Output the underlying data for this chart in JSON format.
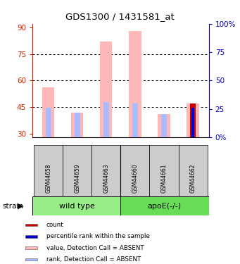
{
  "title": "GDS1300 / 1431581_at",
  "samples": [
    "GSM44658",
    "GSM44659",
    "GSM44663",
    "GSM44660",
    "GSM44661",
    "GSM44662"
  ],
  "ylim_left": [
    28,
    92
  ],
  "ylim_right": [
    0,
    100
  ],
  "yticks_left": [
    30,
    45,
    60,
    75,
    90
  ],
  "yticks_right": [
    0,
    25,
    50,
    75,
    100
  ],
  "yticklabels_left": [
    "30",
    "45",
    "60",
    "75",
    "90"
  ],
  "yticklabels_right": [
    "0%",
    "25",
    "50",
    "75",
    "100%"
  ],
  "pink_bar_top": [
    56,
    42,
    82,
    88,
    41,
    47
  ],
  "pink_bar_bottom": [
    28,
    28,
    28,
    28,
    28,
    28
  ],
  "lblue_bar_top": [
    44.5,
    42,
    48,
    47,
    41,
    44.5
  ],
  "lblue_bar_bottom": [
    28,
    28,
    28,
    28,
    28,
    28
  ],
  "red_bar_top": [
    28,
    28,
    28,
    28,
    28,
    47
  ],
  "red_bar_bottom": [
    28,
    28,
    28,
    28,
    28,
    28
  ],
  "dblue_bar_top": [
    28,
    28,
    28,
    28,
    28,
    44.5
  ],
  "dblue_bar_bottom": [
    28,
    28,
    28,
    28,
    28,
    28
  ],
  "color_pink": "#ffb8b8",
  "color_light_blue": "#aabbff",
  "color_red": "#cc0000",
  "color_dark_blue": "#0000cc",
  "color_left_axis": "#cc2200",
  "color_right_axis": "#0000bb",
  "color_sample_bg": "#cccccc",
  "color_group_wt": "#99ee88",
  "color_group_apoe": "#66dd55",
  "grid_ticks": [
    45,
    60,
    75
  ],
  "wt_label": "wild type",
  "apoe_label": "apoE(-/-)",
  "strain_label": "strain",
  "legend_items": [
    {
      "color": "#cc0000",
      "label": "count"
    },
    {
      "color": "#0000cc",
      "label": "percentile rank within the sample"
    },
    {
      "color": "#ffb8b8",
      "label": "value, Detection Call = ABSENT"
    },
    {
      "color": "#aabbff",
      "label": "rank, Detection Call = ABSENT"
    }
  ]
}
